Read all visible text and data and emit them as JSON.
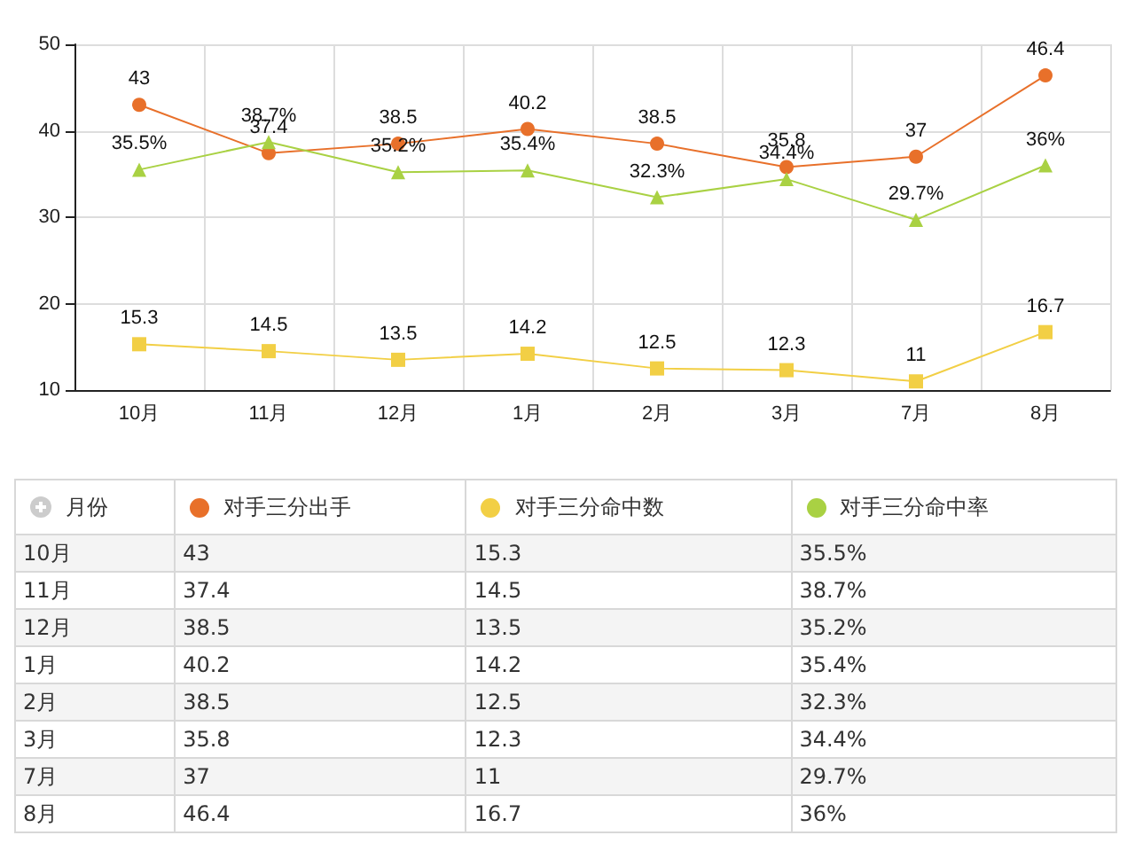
{
  "chart_data": {
    "type": "line",
    "categories": [
      "10月",
      "11月",
      "12月",
      "1月",
      "2月",
      "3月",
      "7月",
      "8月"
    ],
    "legend_title": "月份",
    "series": [
      {
        "name": "对手三分出手",
        "color": "#e8702a",
        "marker": "circle",
        "values": [
          43,
          37.4,
          38.5,
          40.2,
          38.5,
          35.8,
          37,
          46.4
        ],
        "value_labels": [
          "43",
          "37.4",
          "38.5",
          "40.2",
          "38.5",
          "35.8",
          "37",
          "46.4"
        ]
      },
      {
        "name": "对手三分命中数",
        "color": "#f2cf45",
        "marker": "square",
        "values": [
          15.3,
          14.5,
          13.5,
          14.2,
          12.5,
          12.3,
          11,
          16.7
        ],
        "value_labels": [
          "15.3",
          "14.5",
          "13.5",
          "14.2",
          "12.5",
          "12.3",
          "11",
          "16.7"
        ]
      },
      {
        "name": "对手三分命中率",
        "color": "#a9d143",
        "marker": "triangle",
        "values": [
          35.5,
          38.7,
          35.2,
          35.4,
          32.3,
          34.4,
          29.7,
          36
        ],
        "value_labels": [
          "35.5%",
          "38.7%",
          "35.2%",
          "35.4%",
          "32.3%",
          "34.4%",
          "29.7%",
          "36%"
        ]
      }
    ],
    "ylim": [
      10,
      50
    ],
    "yticks": [
      10,
      20,
      30,
      40,
      50
    ],
    "grid": true,
    "legend": "bottom",
    "line_style": "solid"
  }
}
